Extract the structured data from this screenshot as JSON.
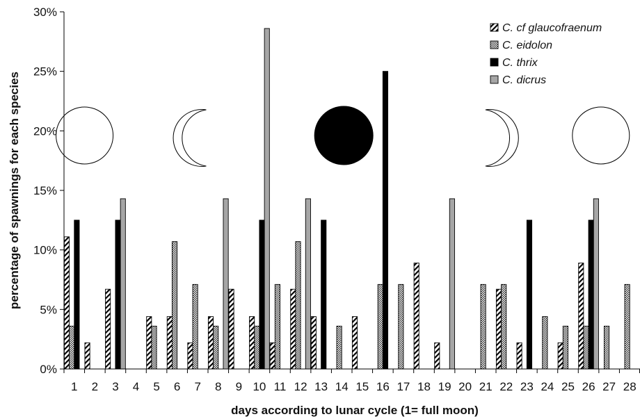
{
  "chart_data": {
    "type": "bar",
    "xlabel": "days according to lunar cycle (1= full moon)",
    "ylabel": "percentage of spawnings for each species",
    "ylim": [
      0,
      30
    ],
    "yticks": [
      "0%",
      "5%",
      "10%",
      "15%",
      "20%",
      "25%",
      "30%"
    ],
    "categories": [
      "1",
      "2",
      "3",
      "4",
      "5",
      "6",
      "7",
      "8",
      "9",
      "10",
      "11",
      "12",
      "13",
      "14",
      "15",
      "16",
      "17",
      "18",
      "19",
      "20",
      "21",
      "22",
      "23",
      "24",
      "25",
      "26",
      "27",
      "28"
    ],
    "grid": false,
    "legend_position": "top-right",
    "series": [
      {
        "name": "C. cf glaucofraenum",
        "pattern": "diagonal-stripes",
        "color": "#000000",
        "values": [
          11.1,
          2.2,
          6.7,
          0,
          4.4,
          4.4,
          2.2,
          4.4,
          6.7,
          4.4,
          2.2,
          6.7,
          4.4,
          0,
          4.4,
          0,
          0,
          8.9,
          2.2,
          0,
          0,
          6.7,
          2.2,
          0,
          2.2,
          8.9,
          0,
          0
        ]
      },
      {
        "name": "C. eidolon",
        "pattern": "checkered",
        "color": "#555555",
        "values": [
          3.6,
          0,
          0,
          0,
          3.6,
          10.7,
          7.1,
          3.6,
          0,
          3.6,
          7.1,
          10.7,
          0,
          3.6,
          0,
          7.1,
          7.1,
          0,
          0,
          0,
          7.1,
          7.1,
          0,
          4.4,
          3.6,
          3.6,
          3.6,
          7.1
        ]
      },
      {
        "name": "C. thrix",
        "pattern": "solid",
        "color": "#000000",
        "values": [
          12.5,
          0,
          12.5,
          0,
          0,
          0,
          0,
          0,
          0,
          12.5,
          0,
          0,
          12.5,
          0,
          0,
          25,
          0,
          0,
          0,
          0,
          0,
          0,
          12.5,
          0,
          0,
          12.5,
          0,
          0
        ]
      },
      {
        "name": "C. dicrus",
        "pattern": "solid",
        "color": "#a6a6a6",
        "values": [
          0,
          0,
          14.3,
          0,
          0,
          0,
          0,
          14.3,
          0,
          28.6,
          0,
          14.3,
          0,
          0,
          0,
          0,
          0,
          0,
          14.3,
          0,
          0,
          0,
          0,
          0,
          0,
          14.3,
          0,
          0
        ]
      }
    ],
    "moon_phases": [
      {
        "day": 1.5,
        "phase": "full"
      },
      {
        "day": 6.5,
        "phase": "waxing-crescent"
      },
      {
        "day": 14.1,
        "phase": "new"
      },
      {
        "day": 21.7,
        "phase": "waning-crescent"
      },
      {
        "day": 26.6,
        "phase": "full"
      }
    ]
  }
}
